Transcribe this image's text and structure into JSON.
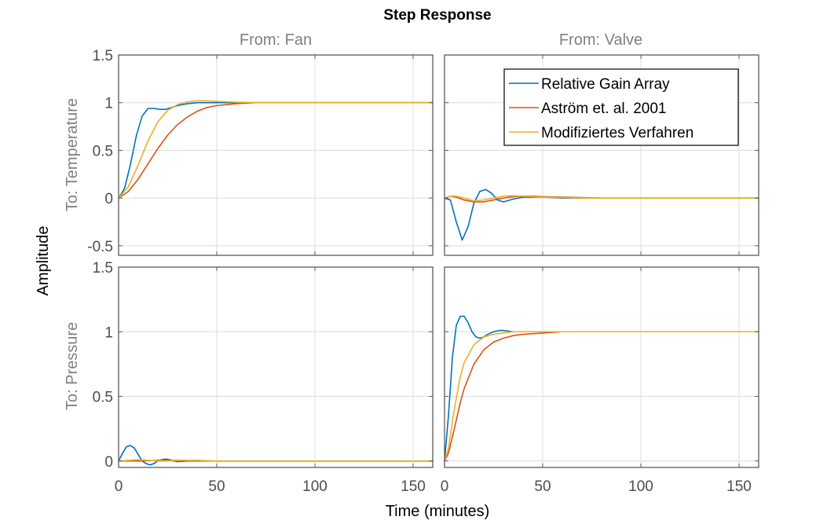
{
  "chart_data": {
    "type": "line",
    "title": "Step Response",
    "xlabel": "Time (minutes)",
    "ylabel": "Amplitude",
    "grid": true,
    "xlim": [
      0,
      160
    ],
    "xticks": [
      0,
      50,
      100,
      150
    ],
    "xtick_labels": [
      "0",
      "50",
      "100",
      "150"
    ],
    "legend": {
      "placement": "top-right of From: Valve / To: Temperature panel",
      "entries": [
        "Relative Gain Array",
        "Aström et. al. 2001",
        "Modifiziertes Verfahren"
      ]
    },
    "series_colors": {
      "Relative Gain Array": "#0072BD",
      "Aström et. al. 2001": "#D95319",
      "Modifiziertes Verfahren": "#EDB120"
    },
    "columns": [
      "From: Fan",
      "From: Valve"
    ],
    "rows": [
      {
        "label": "To: Temperature",
        "ylim": [
          -0.6,
          1.5
        ],
        "yticks": [
          -0.5,
          0,
          0.5,
          1,
          1.5
        ],
        "ytick_labels": [
          "-0.5",
          "0",
          "0.5",
          "1",
          "1.5"
        ]
      },
      {
        "label": "To: Pressure",
        "ylim": [
          -0.05,
          1.5
        ],
        "yticks": [
          0,
          0.5,
          1,
          1.5
        ],
        "ytick_labels": [
          "0",
          "0.5",
          "1",
          "1.5"
        ]
      }
    ],
    "panels": [
      {
        "row": "To: Temperature",
        "column": "From: Fan",
        "series": [
          {
            "name": "Relative Gain Array",
            "x": [
              0,
              3,
              6,
              9,
              12,
              15,
              18,
              21,
              24,
              27,
              30,
              35,
              40,
              50,
              60,
              80,
              100,
              160
            ],
            "y": [
              0,
              0.1,
              0.35,
              0.65,
              0.86,
              0.94,
              0.94,
              0.93,
              0.93,
              0.95,
              0.97,
              0.99,
              1.0,
              1.0,
              1.0,
              1.0,
              1.0,
              1.0
            ]
          },
          {
            "name": "Aström et. al. 2001",
            "x": [
              0,
              5,
              10,
              15,
              20,
              25,
              30,
              35,
              40,
              45,
              50,
              60,
              70,
              80,
              90,
              100,
              160
            ],
            "y": [
              0,
              0.07,
              0.2,
              0.36,
              0.52,
              0.66,
              0.77,
              0.85,
              0.91,
              0.95,
              0.97,
              0.99,
              1.0,
              1.0,
              1.0,
              1.0,
              1.0
            ]
          },
          {
            "name": "Modifiziertes Verfahren",
            "x": [
              0,
              5,
              10,
              15,
              20,
              25,
              30,
              35,
              40,
              45,
              50,
              55,
              60,
              70,
              80,
              160
            ],
            "y": [
              0,
              0.12,
              0.35,
              0.6,
              0.8,
              0.92,
              0.98,
              1.01,
              1.02,
              1.02,
              1.015,
              1.01,
              1.005,
              1.0,
              1.0,
              1.0
            ]
          }
        ]
      },
      {
        "row": "To: Temperature",
        "column": "From: Valve",
        "series": [
          {
            "name": "Relative Gain Array",
            "x": [
              0,
              3,
              6,
              9,
              12,
              15,
              18,
              21,
              24,
              27,
              30,
              35,
              40,
              50,
              60,
              80,
              160
            ],
            "y": [
              0,
              -0.02,
              -0.25,
              -0.44,
              -0.3,
              -0.05,
              0.07,
              0.09,
              0.05,
              -0.02,
              -0.04,
              -0.01,
              0.01,
              0.01,
              0.0,
              0.0,
              0.0
            ]
          },
          {
            "name": "Aström et. al. 2001",
            "x": [
              0,
              3,
              6,
              10,
              15,
              20,
              25,
              30,
              35,
              40,
              45,
              50,
              60,
              70,
              80,
              160
            ],
            "y": [
              0,
              0.02,
              0.01,
              -0.02,
              -0.04,
              -0.04,
              -0.02,
              0.0,
              0.015,
              0.02,
              0.02,
              0.015,
              0.01,
              0.005,
              0.0,
              0.0
            ]
          },
          {
            "name": "Modifiziertes Verfahren",
            "x": [
              0,
              3,
              6,
              10,
              15,
              20,
              25,
              30,
              35,
              40,
              45,
              50,
              60,
              70,
              80,
              160
            ],
            "y": [
              0,
              0.02,
              0.02,
              0.0,
              -0.03,
              -0.02,
              0.0,
              0.02,
              0.025,
              0.02,
              0.015,
              0.01,
              0.005,
              0.0,
              0.0,
              0.0
            ]
          }
        ]
      },
      {
        "row": "To: Pressure",
        "column": "From: Fan",
        "series": [
          {
            "name": "Relative Gain Array",
            "x": [
              0,
              2,
              4,
              6,
              8,
              10,
              12,
              14,
              16,
              18,
              20,
              22,
              24,
              26,
              28,
              30,
              35,
              40,
              50,
              160
            ],
            "y": [
              0,
              0.06,
              0.11,
              0.12,
              0.1,
              0.05,
              0.0,
              -0.02,
              -0.03,
              -0.02,
              0.0,
              0.01,
              0.015,
              0.01,
              0.0,
              -0.005,
              0.0,
              0.0,
              0.0,
              0.0
            ]
          },
          {
            "name": "Aström et. al. 2001",
            "x": [
              0,
              10,
              20,
              30,
              40,
              50,
              160
            ],
            "y": [
              0,
              0.0,
              0.005,
              0.005,
              0.002,
              0.0,
              0.0
            ]
          },
          {
            "name": "Modifiziertes Verfahren",
            "x": [
              0,
              5,
              10,
              15,
              20,
              25,
              30,
              40,
              50,
              160
            ],
            "y": [
              0,
              0.005,
              0.01,
              0.005,
              0.0,
              0.0,
              0.005,
              0.005,
              0.0,
              0.0
            ]
          }
        ]
      },
      {
        "row": "To: Pressure",
        "column": "From: Valve",
        "series": [
          {
            "name": "Relative Gain Array",
            "x": [
              0,
              2,
              4,
              6,
              8,
              10,
              12,
              14,
              16,
              18,
              20,
              22,
              25,
              28,
              30,
              35,
              40,
              50,
              60,
              160
            ],
            "y": [
              0,
              0.35,
              0.8,
              1.05,
              1.12,
              1.12,
              1.07,
              1.0,
              0.96,
              0.95,
              0.96,
              0.98,
              1.0,
              1.01,
              1.01,
              1.0,
              1.0,
              1.0,
              1.0,
              1.0
            ]
          },
          {
            "name": "Aström et. al. 2001",
            "x": [
              0,
              2,
              5,
              8,
              10,
              15,
              20,
              25,
              30,
              35,
              40,
              50,
              60,
              70,
              80,
              100,
              160
            ],
            "y": [
              0,
              0.06,
              0.25,
              0.45,
              0.56,
              0.75,
              0.86,
              0.92,
              0.95,
              0.97,
              0.98,
              0.99,
              1.0,
              1.0,
              1.0,
              1.0,
              1.0
            ]
          },
          {
            "name": "Modifiziertes Verfahren",
            "x": [
              0,
              2,
              5,
              8,
              10,
              15,
              20,
              25,
              30,
              35,
              40,
              50,
              60,
              160
            ],
            "y": [
              0,
              0.1,
              0.4,
              0.65,
              0.76,
              0.9,
              0.96,
              0.98,
              0.99,
              1.0,
              1.0,
              1.0,
              1.0,
              1.0
            ]
          }
        ]
      }
    ]
  }
}
